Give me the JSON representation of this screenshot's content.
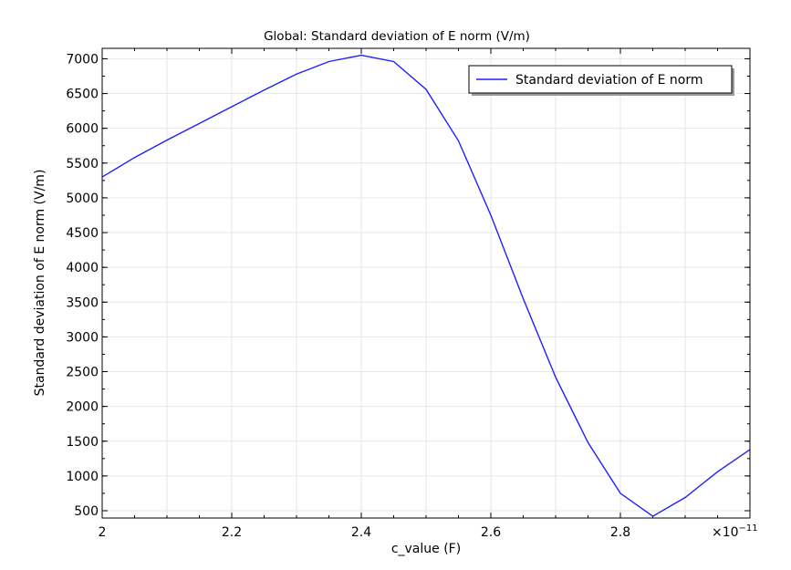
{
  "chart_data": {
    "type": "line",
    "title": "Global: Standard deviation of E norm (V/m)",
    "xlabel": "c_value (F)",
    "ylabel": "Standard deviation of E norm (V/m)",
    "x_multiplier": "×10",
    "x_exponent": "−11",
    "xlim": [
      2.0,
      3.0
    ],
    "ylim": [
      395,
      7150
    ],
    "x_ticks": [
      2,
      2.2,
      2.4,
      2.6,
      2.8
    ],
    "x_tick_labels": [
      "2",
      "2.2",
      "2.4",
      "2.6",
      "2.8"
    ],
    "y_ticks": [
      500,
      1000,
      1500,
      2000,
      2500,
      3000,
      3500,
      4000,
      4500,
      5000,
      5500,
      6000,
      6500,
      7000
    ],
    "y_tick_labels": [
      "500",
      "1000",
      "1500",
      "2000",
      "2500",
      "3000",
      "3500",
      "4000",
      "4500",
      "5000",
      "5500",
      "6000",
      "6500",
      "7000"
    ],
    "grid": true,
    "legend_position": "top-right",
    "series": [
      {
        "name": "Standard deviation of E norm",
        "color": "#1f1fff",
        "x": [
          2.0,
          2.05,
          2.1,
          2.15,
          2.2,
          2.25,
          2.3,
          2.35,
          2.4,
          2.45,
          2.5,
          2.55,
          2.6,
          2.65,
          2.7,
          2.75,
          2.8,
          2.85,
          2.9,
          2.95,
          3.0
        ],
        "y": [
          5300,
          5580,
          5830,
          6070,
          6310,
          6550,
          6780,
          6960,
          7050,
          6960,
          6560,
          5820,
          4750,
          3550,
          2420,
          1480,
          750,
          420,
          690,
          1060,
          1380
        ]
      }
    ]
  }
}
